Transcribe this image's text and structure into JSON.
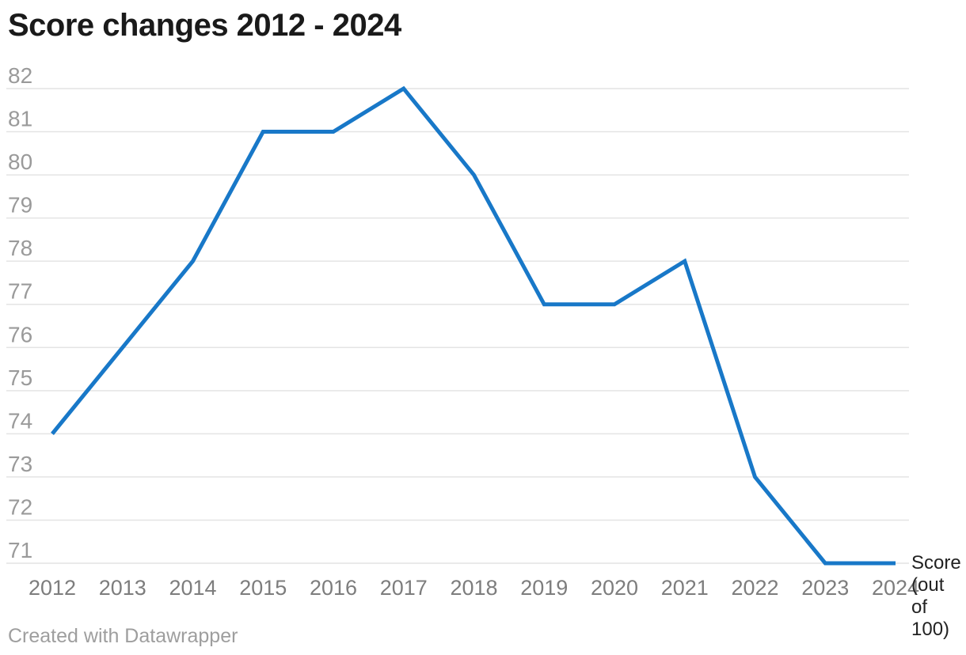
{
  "header": {
    "title": "Score changes 2012 - 2024"
  },
  "chart_data": {
    "type": "line",
    "title": "Score changes 2012 - 2024",
    "x": [
      2012,
      2013,
      2014,
      2015,
      2016,
      2017,
      2018,
      2019,
      2020,
      2021,
      2022,
      2023,
      2024
    ],
    "series": [
      {
        "name": "Score (out of 100)",
        "values": [
          74,
          76,
          78,
          81,
          81,
          82,
          80,
          77,
          77,
          78,
          73,
          71,
          71
        ]
      }
    ],
    "ylim": [
      71,
      82
    ],
    "y_tick_step": 1,
    "xlabel": "",
    "ylabel": "",
    "grid": "horizontal",
    "legend_position": "right of line end"
  },
  "footer": {
    "text": "Created with Datawrapper"
  },
  "colors": {
    "line": "#1878c8",
    "grid": "#e4e4e4",
    "y_tick_label": "#9a9a9a",
    "x_tick_label": "#7d7d7d",
    "title": "#1a1a1a",
    "legend_text": "#222222",
    "footer_text": "#9e9e9e"
  }
}
